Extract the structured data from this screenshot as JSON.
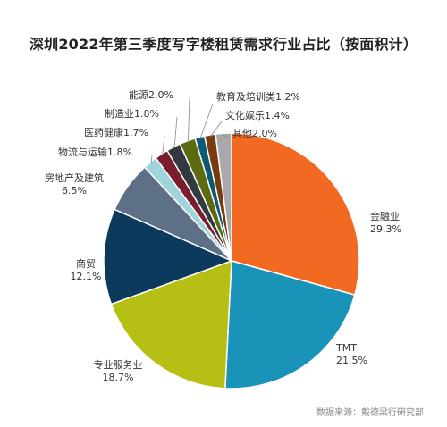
{
  "title": "深圳2022年第三季度写字楼租赁需求行业占比（按面积计）",
  "source": "数据来源：戴德梁行研究部",
  "chart_data": {
    "type": "pie",
    "title": "深圳2022年第三季度写字楼租赁需求行业占比（按面积计）",
    "unit": "%",
    "slices": [
      {
        "name": "金融业",
        "value": 29.3,
        "label": "29.3%",
        "color": "#f26a22"
      },
      {
        "name": "TMT",
        "value": 21.5,
        "label": "21.5%",
        "color": "#1a93b8"
      },
      {
        "name": "专业服务业",
        "value": 18.7,
        "label": "18.7%",
        "color": "#b6bf14"
      },
      {
        "name": "商贸",
        "value": 12.1,
        "label": "12.1%",
        "color": "#0b3a5c"
      },
      {
        "name": "房地产及建筑",
        "value": 6.5,
        "label": "6.5%",
        "color": "#5e7088"
      },
      {
        "name": "物流与运输",
        "value": 1.8,
        "label": "1.8%",
        "color": "#9fd4dd"
      },
      {
        "name": "医药健康",
        "value": 1.7,
        "label": "1.7%",
        "color": "#7a1d2e"
      },
      {
        "name": "制造业",
        "value": 1.8,
        "label": "1.8%",
        "color": "#333a3f"
      },
      {
        "name": "能源",
        "value": 2.0,
        "label": "2.0%",
        "color": "#5c6b10"
      },
      {
        "name": "教育及培训类",
        "value": 1.2,
        "label": "1.2%",
        "color": "#0a5a73"
      },
      {
        "name": "文化娱乐",
        "value": 1.4,
        "label": "1.4%",
        "color": "#7a3a10"
      },
      {
        "name": "其他",
        "value": 2.0,
        "label": "2.0%",
        "color": "#a9a9a9"
      }
    ]
  }
}
